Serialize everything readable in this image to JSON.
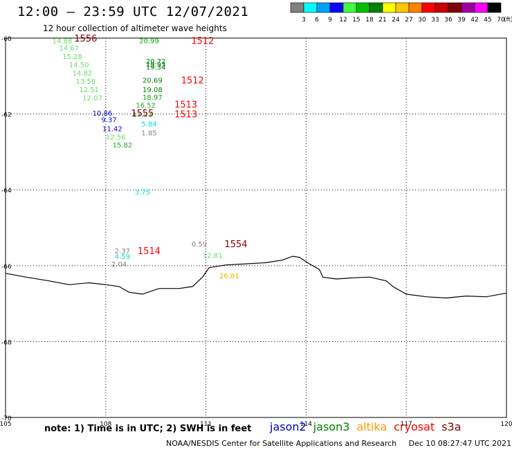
{
  "header": {
    "title": "12:00 – 23:59 UTC 12/07/2021",
    "subtitle": "12 hour collection of altimeter wave heights"
  },
  "colorbar": {
    "labels": [
      "3",
      "6",
      "9",
      "12",
      "15",
      "18",
      "21",
      "24",
      "27",
      "30",
      "33",
      "36",
      "39",
      "42",
      "45",
      "70"
    ],
    "colors": [
      "#808080",
      "#00ffff",
      "#00a0ff",
      "#0000ff",
      "#40ff40",
      "#00c000",
      "#008000",
      "#ffff00",
      "#ffc800",
      "#ff8000",
      "#ff0000",
      "#c80000",
      "#800000",
      "#a000a0",
      "#ff00ff",
      "#000000"
    ],
    "unit": "(ft)"
  },
  "footer": {
    "note": "note: 1) Time is in UTC; 2) SWH is in feet",
    "satellites": [
      {
        "name": "jason2",
        "color": "#0000cc"
      },
      {
        "name": "jason3",
        "color": "#008000"
      },
      {
        "name": "altika",
        "color": "#ff9900"
      },
      {
        "name": "cryosat",
        "color": "#ff0000"
      },
      {
        "name": "s3a",
        "color": "#800000"
      }
    ],
    "credit": "NOAA/NESDIS Center for Satellite Applications and Research",
    "timestamp": "Dec 10 08:27:47 UTC 2021"
  },
  "chart_data": {
    "type": "scatter",
    "title": "12:00 – 23:59 UTC 12/07/2021",
    "subtitle": "12 hour collection of altimeter wave heights",
    "xlim": [
      105,
      120
    ],
    "ylim": [
      -70,
      -60
    ],
    "x_ticks": [
      "105",
      "108",
      "111",
      "114",
      "117",
      "120"
    ],
    "y_ticks": [
      "-60",
      "-62",
      "-64",
      "-66",
      "-68",
      "-70"
    ],
    "grid": true,
    "points": [
      {
        "x": 106.7,
        "y": -60.06,
        "label": "14.88",
        "color": "#66dd66"
      },
      {
        "x": 106.9,
        "y": -60.26,
        "label": "14.67",
        "color": "#66dd66"
      },
      {
        "x": 107.0,
        "y": -60.47,
        "label": "15.28",
        "color": "#66dd66"
      },
      {
        "x": 107.2,
        "y": -60.69,
        "label": "14.50",
        "color": "#66dd66"
      },
      {
        "x": 107.3,
        "y": -60.91,
        "label": "14.82",
        "color": "#66dd66"
      },
      {
        "x": 107.4,
        "y": -61.13,
        "label": "13.58",
        "color": "#66dd66"
      },
      {
        "x": 107.5,
        "y": -61.35,
        "label": "12.51",
        "color": "#66dd66"
      },
      {
        "x": 107.6,
        "y": -61.57,
        "label": "12.07",
        "color": "#66dd66"
      },
      {
        "x": 107.9,
        "y": -61.97,
        "label": "10.86",
        "color": "#0000cc"
      },
      {
        "x": 108.1,
        "y": -62.14,
        "label": "9.37",
        "color": "#0000cc"
      },
      {
        "x": 108.2,
        "y": -62.38,
        "label": "11.42",
        "color": "#0000cc"
      },
      {
        "x": 108.3,
        "y": -62.6,
        "label": "12.56",
        "color": "#66dd66"
      },
      {
        "x": 108.5,
        "y": -62.81,
        "label": "15.82",
        "color": "#22aa22"
      },
      {
        "x": 109.1,
        "y": -64.05,
        "label": "3.75",
        "color": "#00dddd"
      },
      {
        "x": 109.3,
        "y": -60.06,
        "label": "20.99",
        "color": "#00aa00"
      },
      {
        "x": 109.5,
        "y": -60.6,
        "label": "20.72",
        "color": "#008000"
      },
      {
        "x": 109.5,
        "y": -60.68,
        "label": "19.93",
        "color": "#008000"
      },
      {
        "x": 109.5,
        "y": -60.76,
        "label": "19.34",
        "color": "#008000"
      },
      {
        "x": 109.4,
        "y": -61.1,
        "label": "20.69",
        "color": "#008000"
      },
      {
        "x": 109.4,
        "y": -61.35,
        "label": "19.08",
        "color": "#008000"
      },
      {
        "x": 109.4,
        "y": -61.55,
        "label": "18.97",
        "color": "#00aa00"
      },
      {
        "x": 109.2,
        "y": -61.76,
        "label": "16.52",
        "color": "#22aa22"
      },
      {
        "x": 109.1,
        "y": -62.0,
        "label": "17.23",
        "color": "#22aa22"
      },
      {
        "x": 109.3,
        "y": -62.25,
        "label": "5.84",
        "color": "#00dddd"
      },
      {
        "x": 109.3,
        "y": -62.49,
        "label": "1.85",
        "color": "#808080"
      },
      {
        "x": 108.5,
        "y": -65.6,
        "label": "2.37",
        "color": "#808080"
      },
      {
        "x": 108.5,
        "y": -65.75,
        "label": "4.59",
        "color": "#00dddd"
      },
      {
        "x": 108.4,
        "y": -65.95,
        "label": "2.04",
        "color": "#808080"
      },
      {
        "x": 110.8,
        "y": -65.42,
        "label": "0.59",
        "color": "#808080"
      },
      {
        "x": 111.2,
        "y": -65.72,
        "label": "12.81",
        "color": "#66dd66"
      },
      {
        "x": 111.7,
        "y": -66.26,
        "label": "26.81",
        "color": "#e6b800"
      }
    ],
    "time_labels": [
      {
        "x": 107.4,
        "y": -60.0,
        "label": "1556",
        "color": "#800000"
      },
      {
        "x": 109.1,
        "y": -61.97,
        "label": "1555",
        "color": "#800000"
      },
      {
        "x": 110.9,
        "y": -60.06,
        "label": "1512",
        "color": "#ff0000"
      },
      {
        "x": 110.6,
        "y": -61.1,
        "label": "1512",
        "color": "#ff0000"
      },
      {
        "x": 110.4,
        "y": -61.74,
        "label": "1513",
        "color": "#ff0000"
      },
      {
        "x": 110.4,
        "y": -62.0,
        "label": "1513",
        "color": "#ff0000"
      },
      {
        "x": 109.3,
        "y": -65.6,
        "label": "1514",
        "color": "#ff0000"
      },
      {
        "x": 111.9,
        "y": -65.42,
        "label": "1554",
        "color": "#800000"
      }
    ],
    "coastline": [
      [
        105.0,
        -66.2
      ],
      [
        105.6,
        -66.3
      ],
      [
        106.3,
        -66.4
      ],
      [
        106.9,
        -66.5
      ],
      [
        107.5,
        -66.45
      ],
      [
        108.0,
        -66.5
      ],
      [
        108.4,
        -66.55
      ],
      [
        108.7,
        -66.7
      ],
      [
        109.1,
        -66.75
      ],
      [
        109.6,
        -66.6
      ],
      [
        110.2,
        -66.6
      ],
      [
        110.6,
        -66.55
      ],
      [
        110.9,
        -66.3
      ],
      [
        111.1,
        -66.05
      ],
      [
        111.6,
        -65.98
      ],
      [
        112.2,
        -65.95
      ],
      [
        112.8,
        -65.92
      ],
      [
        113.3,
        -65.85
      ],
      [
        113.6,
        -65.75
      ],
      [
        113.8,
        -65.78
      ],
      [
        114.1,
        -65.95
      ],
      [
        114.4,
        -66.1
      ],
      [
        114.5,
        -66.3
      ],
      [
        114.9,
        -66.35
      ],
      [
        115.4,
        -66.32
      ],
      [
        115.9,
        -66.3
      ],
      [
        116.4,
        -66.4
      ],
      [
        116.6,
        -66.55
      ],
      [
        117.0,
        -66.75
      ],
      [
        117.6,
        -66.82
      ],
      [
        118.2,
        -66.85
      ],
      [
        118.8,
        -66.8
      ],
      [
        119.4,
        -66.82
      ],
      [
        120.0,
        -66.72
      ]
    ]
  }
}
